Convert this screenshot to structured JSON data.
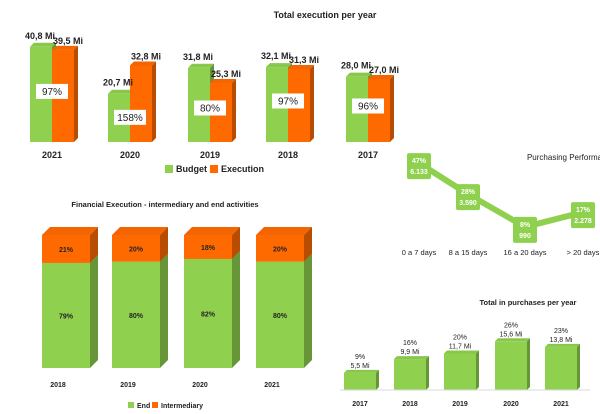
{
  "chart_data": [
    {
      "id": "execution",
      "type": "bar",
      "title": "Total execution per year",
      "categories": [
        "2021",
        "2020",
        "2019",
        "2018",
        "2017"
      ],
      "series": [
        {
          "name": "Budget",
          "values": [
            40.8,
            20.7,
            31.8,
            32.1,
            28.0
          ],
          "labels": [
            "40,8 Mi",
            "20,7 Mi",
            "31,8 Mi",
            "32,1 Mi",
            "28,0 Mi"
          ]
        },
        {
          "name": "Execution",
          "values": [
            39.5,
            32.8,
            25.3,
            31.3,
            27.0
          ],
          "labels": [
            "39,5 Mi",
            "32,8 Mi",
            "25,3 Mi",
            "31,3 Mi",
            "27,0 Mi"
          ]
        }
      ],
      "percent_labels": [
        "97%",
        "158%",
        "80%",
        "97%",
        "96%"
      ],
      "ylim": [
        0,
        45
      ],
      "legend": "bottom",
      "colors": {
        "budget": "#8fd14f",
        "execution": "#ff6a00"
      }
    },
    {
      "id": "purchasing",
      "type": "line",
      "title": "Purchasing Performance",
      "categories": [
        "0 a 7 days",
        "8 a 15 days",
        "16 a 20 days",
        "> 20 days"
      ],
      "values": [
        47,
        28,
        8,
        17
      ],
      "percent_labels": [
        "47%",
        "28%",
        "8%",
        "17%"
      ],
      "count_labels": [
        "6.133",
        "3.590",
        "990",
        "2.278"
      ],
      "ylim": [
        0,
        55
      ],
      "color": "#8fd14f"
    },
    {
      "id": "financial",
      "type": "bar",
      "title": "Financial Execution - intermediary and end activities",
      "categories": [
        "2018",
        "2019",
        "2020",
        "2021"
      ],
      "series": [
        {
          "name": "End",
          "values": [
            79,
            80,
            82,
            80
          ],
          "labels": [
            "79%",
            "80%",
            "82%",
            "80%"
          ]
        },
        {
          "name": "Intermediary",
          "values": [
            21,
            20,
            18,
            20
          ],
          "labels": [
            "21%",
            "20%",
            "18%",
            "20%"
          ]
        }
      ],
      "ylim": [
        0,
        100
      ],
      "legend": "bottom",
      "colors": {
        "end": "#8fd14f",
        "intermediary": "#ff6a00"
      }
    },
    {
      "id": "purchases",
      "type": "bar",
      "title": "Total in purchases per year",
      "categories": [
        "2017",
        "2018",
        "2019",
        "2020",
        "2021"
      ],
      "values": [
        5.5,
        9.9,
        11.7,
        15.6,
        13.8
      ],
      "value_labels": [
        "5,5 Mi",
        "9,9 Mi",
        "11,7 Mi",
        "15,6 Mi",
        "13,8 Mi"
      ],
      "percent_labels": [
        "9%",
        "16%",
        "20%",
        "26%",
        "23%"
      ],
      "ylim": [
        0,
        16
      ],
      "color": "#8fd14f"
    }
  ]
}
